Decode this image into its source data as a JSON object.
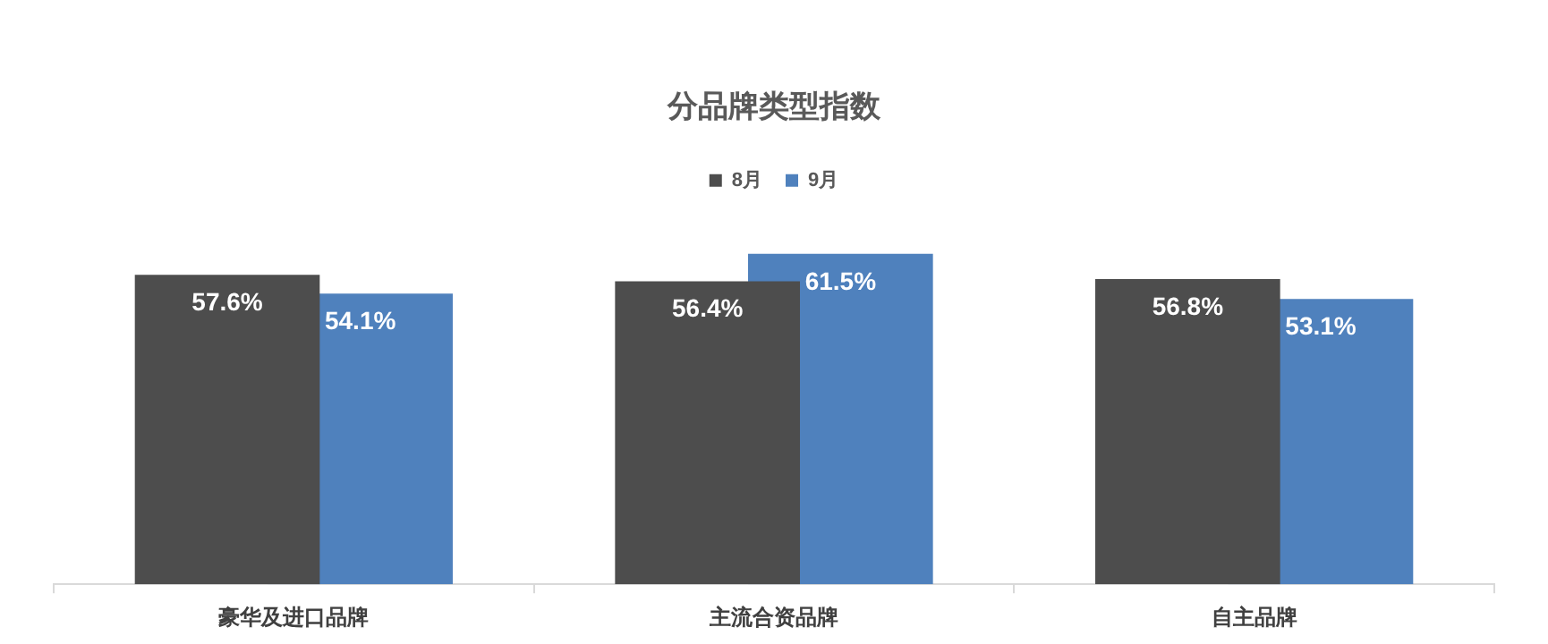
{
  "chart_data": {
    "type": "bar",
    "title": "分品牌类型指数",
    "categories": [
      "豪华及进口品牌",
      "主流合资品牌",
      "自主品牌"
    ],
    "series": [
      {
        "name": "8月",
        "color": "#4d4d4d",
        "values": [
          57.6,
          56.4,
          56.8
        ],
        "value_labels": [
          "57.6%",
          "56.4%",
          "56.8%"
        ]
      },
      {
        "name": "9月",
        "color": "#4f81bd",
        "values": [
          54.1,
          61.5,
          53.1
        ],
        "value_labels": [
          "54.1%",
          "61.5%",
          "53.1%"
        ]
      }
    ],
    "legend": "top",
    "grid": false
  }
}
